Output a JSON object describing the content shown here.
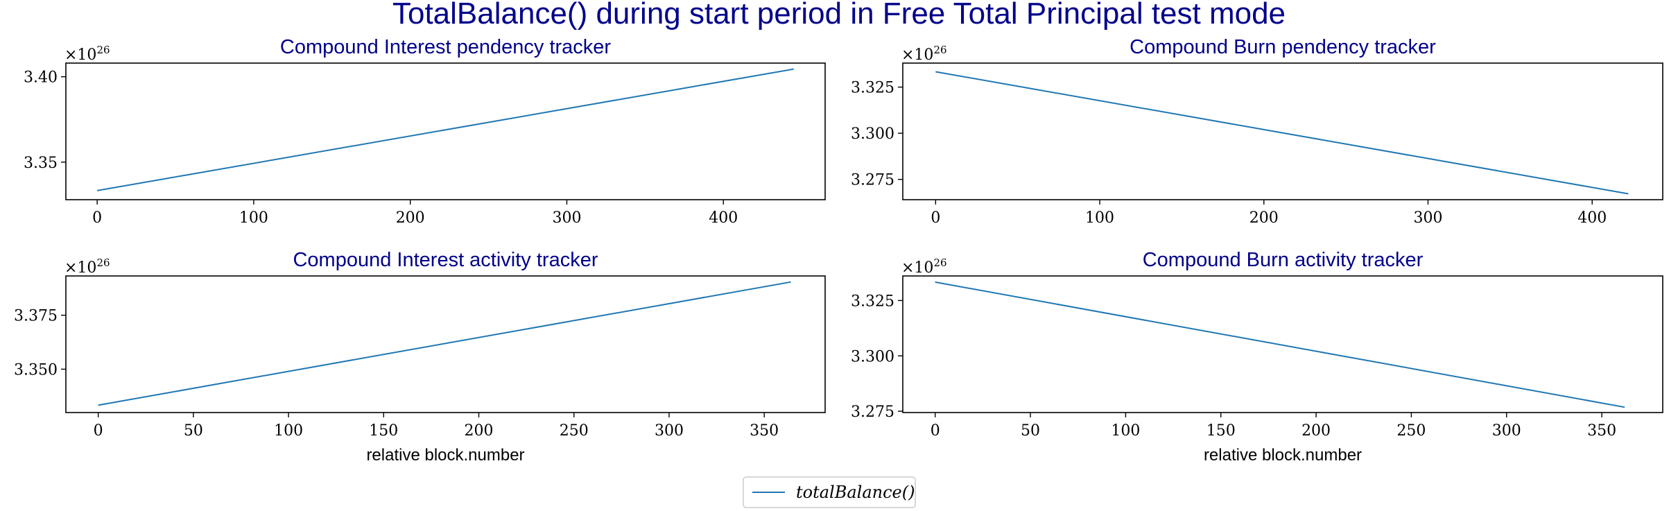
{
  "figure": {
    "title": "TotalBalance() during start period in Free Total Principal test mode",
    "title_color": "#00008b",
    "line_color": "#1f77b4"
  },
  "legend": {
    "label": "totalBalance()",
    "placement": "bottom-center"
  },
  "chart_data": [
    {
      "type": "line",
      "title": "Compound Interest pendency tracker",
      "xlabel": "",
      "ylabel": "",
      "offset_base": "×10",
      "offset_exp": "26",
      "xlim": [
        -20,
        465
      ],
      "ylim": [
        3.328,
        3.408
      ],
      "xticks": [
        0,
        100,
        200,
        300,
        400
      ],
      "xtick_labels": [
        "0",
        "100",
        "200",
        "300",
        "400"
      ],
      "yticks": [
        3.35,
        3.4
      ],
      "ytick_labels": [
        "3.35",
        "3.40"
      ],
      "series": [
        {
          "name": "totalBalance()",
          "x": [
            0,
            445
          ],
          "y": [
            3.3333,
            3.4045
          ]
        }
      ]
    },
    {
      "type": "line",
      "title": "Compound Burn pendency tracker",
      "xlabel": "",
      "ylabel": "",
      "offset_base": "×10",
      "offset_exp": "26",
      "xlim": [
        -20,
        443
      ],
      "ylim": [
        3.264,
        3.338
      ],
      "xticks": [
        0,
        100,
        200,
        300,
        400
      ],
      "xtick_labels": [
        "0",
        "100",
        "200",
        "300",
        "400"
      ],
      "yticks": [
        3.275,
        3.3,
        3.325
      ],
      "ytick_labels": [
        "3.275",
        "3.300",
        "3.325"
      ],
      "series": [
        {
          "name": "totalBalance()",
          "x": [
            0,
            422
          ],
          "y": [
            3.3333,
            3.2672
          ]
        }
      ]
    },
    {
      "type": "line",
      "title": "Compound Interest activity tracker",
      "xlabel": "relative block.number",
      "ylabel": "",
      "offset_base": "×10",
      "offset_exp": "26",
      "xlim": [
        -17,
        382
      ],
      "ylim": [
        3.3299,
        3.3932
      ],
      "xticks": [
        0,
        50,
        100,
        150,
        200,
        250,
        300,
        350
      ],
      "xtick_labels": [
        "0",
        "50",
        "100",
        "150",
        "200",
        "250",
        "300",
        "350"
      ],
      "yticks": [
        3.35,
        3.375
      ],
      "ytick_labels": [
        "3.350",
        "3.375"
      ],
      "series": [
        {
          "name": "totalBalance()",
          "x": [
            0,
            364
          ],
          "y": [
            3.3333,
            3.3904
          ]
        }
      ]
    },
    {
      "type": "line",
      "title": "Compound Burn activity tracker",
      "xlabel": "relative block.number",
      "ylabel": "",
      "offset_base": "×10",
      "offset_exp": "26",
      "xlim": [
        -17,
        382
      ],
      "ylim": [
        3.2744,
        3.3361
      ],
      "xticks": [
        0,
        50,
        100,
        150,
        200,
        250,
        300,
        350
      ],
      "xtick_labels": [
        "0",
        "50",
        "100",
        "150",
        "200",
        "250",
        "300",
        "350"
      ],
      "yticks": [
        3.275,
        3.3,
        3.325
      ],
      "ytick_labels": [
        "3.275",
        "3.300",
        "3.325"
      ],
      "series": [
        {
          "name": "totalBalance()",
          "x": [
            0,
            362
          ],
          "y": [
            3.3333,
            3.2768
          ]
        }
      ]
    }
  ]
}
